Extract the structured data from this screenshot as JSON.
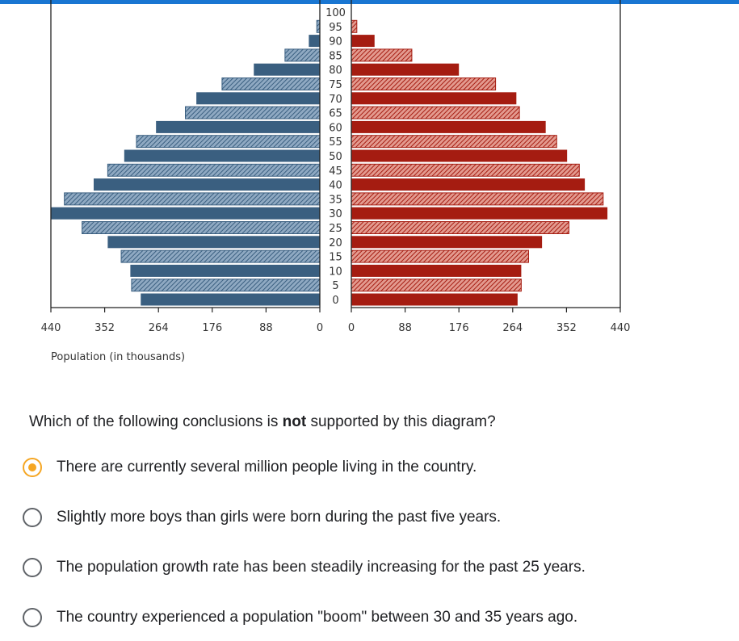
{
  "chart_data": {
    "type": "bar",
    "orientation": "horizontal-back-to-back",
    "age_labels": [
      "0",
      "5",
      "10",
      "15",
      "20",
      "25",
      "30",
      "35",
      "40",
      "45",
      "50",
      "55",
      "60",
      "65",
      "70",
      "75",
      "80",
      "85",
      "90",
      "95",
      "100"
    ],
    "series": [
      {
        "values": [
          293,
          308,
          310,
          325,
          347,
          389,
          440,
          418,
          370,
          347,
          320,
          300,
          268,
          220,
          202,
          160,
          108,
          57,
          18,
          5,
          0
        ],
        "color": "#3a5f80"
      },
      {
        "values": [
          272,
          278,
          278,
          290,
          312,
          356,
          419,
          412,
          382,
          373,
          353,
          336,
          318,
          275,
          270,
          236,
          176,
          99,
          38,
          9,
          0
        ],
        "color": "#a51c11"
      }
    ],
    "left_ticks": [
      "440",
      "352",
      "264",
      "176",
      "88",
      "0"
    ],
    "right_ticks": [
      "0",
      "88",
      "176",
      "264",
      "352",
      "440"
    ],
    "xlim": [
      0,
      440
    ],
    "xlabel": "Population (in thousands)",
    "hatched_every_other_band": true
  },
  "quiz": {
    "question_before": "Which of the following conclusions is ",
    "question_bold": "not",
    "question_after": " supported by this diagram?",
    "options": [
      {
        "label": "There are currently several million people living in the country.",
        "selected": true
      },
      {
        "label": "Slightly more boys than girls were born during the past five years.",
        "selected": false
      },
      {
        "label": "The population growth rate has been steadily increasing for the past 25 years.",
        "selected": false
      },
      {
        "label": "The country experienced a population \"boom\" between 30 and 35 years ago.",
        "selected": false
      }
    ]
  },
  "colors": {
    "accent": "#f5a623",
    "topbar": "#1976d2"
  }
}
